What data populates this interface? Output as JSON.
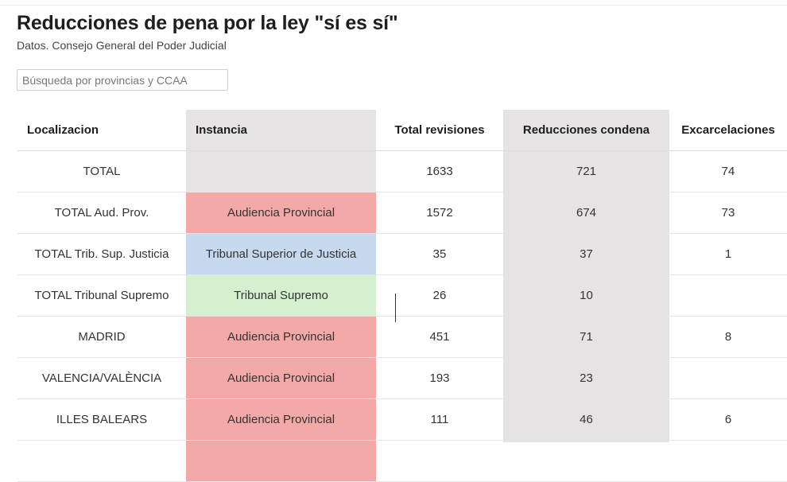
{
  "title": "Reducciones de pena por la ley \"sí es sí\"",
  "subtitle": "Datos. Consejo General del Poder Judicial",
  "search": {
    "placeholder": "Búsqueda por provincias y CCAA",
    "value": ""
  },
  "table": {
    "headers": [
      "Localizacion",
      "Instancia",
      "Total revisiones",
      "Reducciones condena",
      "Excarcelaciones"
    ],
    "rows": [
      {
        "localizacion": "TOTAL",
        "instancia": "",
        "instancia_type": "none",
        "total_revisiones": "1633",
        "reducciones_condena": "721",
        "excarcelaciones": "74"
      },
      {
        "localizacion": "TOTAL Aud. Prov.",
        "instancia": "Audiencia Provincial",
        "instancia_type": "ap",
        "total_revisiones": "1572",
        "reducciones_condena": "674",
        "excarcelaciones": "73"
      },
      {
        "localizacion": "TOTAL Trib. Sup. Justicia",
        "instancia": "Tribunal Superior de Justicia",
        "instancia_type": "tsj",
        "total_revisiones": "35",
        "reducciones_condena": "37",
        "excarcelaciones": "1"
      },
      {
        "localizacion": "TOTAL Tribunal Supremo",
        "instancia": "Tribunal Supremo",
        "instancia_type": "ts",
        "total_revisiones": "26",
        "reducciones_condena": "10",
        "excarcelaciones": ""
      },
      {
        "localizacion": "MADRID",
        "instancia": "Audiencia Provincial",
        "instancia_type": "ap",
        "total_revisiones": "451",
        "reducciones_condena": "71",
        "excarcelaciones": "8"
      },
      {
        "localizacion": "VALENCIA/VALÈNCIA",
        "instancia": "Audiencia Provincial",
        "instancia_type": "ap",
        "total_revisiones": "193",
        "reducciones_condena": "23",
        "excarcelaciones": ""
      },
      {
        "localizacion": "ILLES BALEARS",
        "instancia": "Audiencia Provincial",
        "instancia_type": "ap",
        "total_revisiones": "111",
        "reducciones_condena": "46",
        "excarcelaciones": "6"
      },
      {
        "localizacion": "",
        "instancia": "",
        "instancia_type": "ap",
        "total_revisiones": "",
        "reducciones_condena": "",
        "excarcelaciones": ""
      }
    ]
  },
  "colors": {
    "audiencia_provincial": "#f4a9a9",
    "tribunal_superior_justicia": "#c7d9ef",
    "tribunal_supremo": "#d5f0cf",
    "highlight_column": "#e5e3e3"
  }
}
